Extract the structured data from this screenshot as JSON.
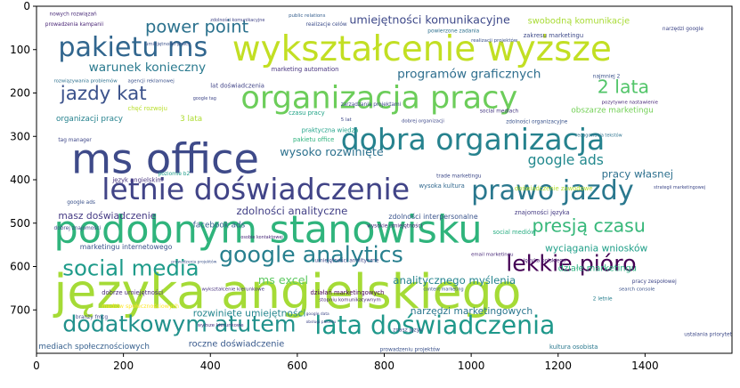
{
  "chart_data": {
    "type": "image",
    "xlim": [
      0,
      1600
    ],
    "ylim": [
      800,
      0
    ],
    "xticks": [
      0,
      200,
      400,
      600,
      800,
      1000,
      1200,
      1400
    ],
    "yticks": [
      0,
      100,
      200,
      300,
      400,
      500,
      600,
      700
    ],
    "xtick_labels": [
      "0",
      "200",
      "400",
      "600",
      "800",
      "1000",
      "1200",
      "1400"
    ],
    "ytick_labels": [
      "0",
      "100",
      "200",
      "300",
      "400",
      "500",
      "600",
      "700"
    ],
    "background": "#ffffff",
    "words": [
      {
        "text": "języka angielskiego",
        "x": 40,
        "y": 695,
        "size": 110,
        "color": "#a5db36"
      },
      {
        "text": "podobnym stanowisku",
        "x": 40,
        "y": 545,
        "size": 88,
        "color": "#2fb47c"
      },
      {
        "text": "wykształcenie wyższe",
        "x": 450,
        "y": 125,
        "size": 80,
        "color": "#c2df23"
      },
      {
        "text": "ms office",
        "x": 80,
        "y": 385,
        "size": 95,
        "color": "#3e4a89"
      },
      {
        "text": "organizacja pracy",
        "x": 470,
        "y": 235,
        "size": 72,
        "color": "#6ccd5a"
      },
      {
        "text": "dobra organizacja",
        "x": 700,
        "y": 330,
        "size": 68,
        "color": "#26828e"
      },
      {
        "text": "letnie doświadczenie",
        "x": 150,
        "y": 445,
        "size": 68,
        "color": "#414487"
      },
      {
        "text": "pakietu ms",
        "x": 50,
        "y": 115,
        "size": 62,
        "color": "#31668e"
      },
      {
        "text": "prawo jazdy",
        "x": 1000,
        "y": 445,
        "size": 62,
        "color": "#2a788e"
      },
      {
        "text": "lata doświadczenia",
        "x": 640,
        "y": 755,
        "size": 58,
        "color": "#1f988b"
      },
      {
        "text": "dodatkowym atutem",
        "x": 60,
        "y": 750,
        "size": 52,
        "color": "#21918c"
      },
      {
        "text": "google analytics",
        "x": 420,
        "y": 590,
        "size": 52,
        "color": "#277f8e"
      },
      {
        "text": "social media",
        "x": 60,
        "y": 620,
        "size": 50,
        "color": "#1e9b8a"
      },
      {
        "text": "lekkie pióro",
        "x": 1080,
        "y": 610,
        "size": 52,
        "color": "#440154"
      },
      {
        "text": "jazdy kat",
        "x": 55,
        "y": 215,
        "size": 44,
        "color": "#3b528b"
      },
      {
        "text": "power point",
        "x": 250,
        "y": 60,
        "size": 40,
        "color": "#2c728e"
      },
      {
        "text": "presją czasu",
        "x": 1140,
        "y": 520,
        "size": 42,
        "color": "#35b779"
      },
      {
        "text": "2 lata",
        "x": 1290,
        "y": 200,
        "size": 42,
        "color": "#52c569"
      },
      {
        "text": "umiejętności komunikacyjne",
        "x": 720,
        "y": 40,
        "size": 26,
        "color": "#3e4989"
      },
      {
        "text": "warunek konieczny",
        "x": 120,
        "y": 150,
        "size": 28,
        "color": "#29798e"
      },
      {
        "text": "programów graficznych",
        "x": 830,
        "y": 165,
        "size": 28,
        "color": "#2e6e8e"
      },
      {
        "text": "google ads",
        "x": 1130,
        "y": 365,
        "size": 32,
        "color": "#23898e"
      },
      {
        "text": "wysoko rozwinięte",
        "x": 560,
        "y": 345,
        "size": 26,
        "color": "#2c718e"
      },
      {
        "text": "zdolności analityczne",
        "x": 460,
        "y": 480,
        "size": 24,
        "color": "#424086"
      },
      {
        "text": "masz doświadczenie",
        "x": 50,
        "y": 490,
        "size": 22,
        "color": "#443983"
      },
      {
        "text": "pracy własnej",
        "x": 1300,
        "y": 395,
        "size": 24,
        "color": "#2d708e"
      },
      {
        "text": "analitycznego myślenia",
        "x": 820,
        "y": 640,
        "size": 24,
        "color": "#25848e"
      },
      {
        "text": "wyciągania wniosków",
        "x": 1170,
        "y": 565,
        "size": 22,
        "color": "#1f9f88"
      },
      {
        "text": "rozwinięte umiejętności",
        "x": 360,
        "y": 715,
        "size": 22,
        "color": "#24868e"
      },
      {
        "text": "narzędzi marketingowych",
        "x": 860,
        "y": 710,
        "size": 22,
        "color": "#2a768e"
      },
      {
        "text": "ms excel",
        "x": 510,
        "y": 640,
        "size": 26,
        "color": "#5ec962"
      },
      {
        "text": "działe marketingu",
        "x": 1200,
        "y": 610,
        "size": 20,
        "color": "#2ab07f"
      },
      {
        "text": "swobodną komunikacje",
        "x": 1130,
        "y": 40,
        "size": 20,
        "color": "#a8db34"
      },
      {
        "text": "roczne doświadczenie",
        "x": 350,
        "y": 785,
        "size": 20,
        "color": "#38598c"
      },
      {
        "text": "mediach społecznościowych",
        "x": 5,
        "y": 790,
        "size": 18,
        "color": "#355f8d"
      },
      {
        "text": "organizacji pracy",
        "x": 45,
        "y": 265,
        "size": 18,
        "color": "#26828e"
      },
      {
        "text": "facebook ads",
        "x": 360,
        "y": 510,
        "size": 18,
        "color": "#34618d"
      },
      {
        "text": "3 lata",
        "x": 330,
        "y": 265,
        "size": 18,
        "color": "#addc30"
      },
      {
        "text": "obszarze marketingu",
        "x": 1230,
        "y": 245,
        "size": 18,
        "color": "#73d056"
      },
      {
        "text": "marketingu internetowego",
        "x": 100,
        "y": 560,
        "size": 16,
        "color": "#3b528b"
      },
      {
        "text": "zdolności interpersonalne",
        "x": 810,
        "y": 490,
        "size": 16,
        "color": "#3a548c"
      },
      {
        "text": "działań marketingowych",
        "x": 630,
        "y": 665,
        "size": 14,
        "color": "#440154"
      },
      {
        "text": "kultura osobista",
        "x": 1180,
        "y": 790,
        "size": 14,
        "color": "#2a788e"
      },
      {
        "text": "zakresu marketingu",
        "x": 1120,
        "y": 72,
        "size": 14,
        "color": "#3e4a89"
      },
      {
        "text": "lat doświadczenia",
        "x": 400,
        "y": 188,
        "size": 14,
        "color": "#414487"
      },
      {
        "text": "wysoka kultura",
        "x": 880,
        "y": 418,
        "size": 14,
        "color": "#31688e"
      },
      {
        "text": "znajomości języka",
        "x": 1100,
        "y": 480,
        "size": 14,
        "color": "#443a83"
      },
      {
        "text": "doświadczenie zawodowe",
        "x": 1100,
        "y": 425,
        "size": 14,
        "color": "#b5de2b"
      },
      {
        "text": "język angielskim",
        "x": 175,
        "y": 405,
        "size": 14,
        "color": "#46327e"
      },
      {
        "text": "dobrze umiejętności",
        "x": 150,
        "y": 665,
        "size": 14,
        "color": "#482878"
      },
      {
        "text": "mediów społecznościowych",
        "x": 150,
        "y": 695,
        "size": 13,
        "color": "#fde725"
      },
      {
        "text": "marketing automation",
        "x": 540,
        "y": 150,
        "size": 14,
        "color": "#46337e"
      },
      {
        "text": "praktyczna wiedza",
        "x": 610,
        "y": 290,
        "size": 14,
        "color": "#1fa188"
      },
      {
        "text": "pakietu office",
        "x": 590,
        "y": 312,
        "size": 14,
        "color": "#2db27d"
      },
      {
        "text": "czasu pracy",
        "x": 580,
        "y": 250,
        "size": 14,
        "color": "#20a386"
      },
      {
        "text": "chęć rozwoju",
        "x": 210,
        "y": 240,
        "size": 14,
        "color": "#b8de29"
      },
      {
        "text": "social mediów",
        "x": 1050,
        "y": 525,
        "size": 14,
        "color": "#27ad81"
      },
      {
        "text": "zarządzania projektami",
        "x": 700,
        "y": 230,
        "size": 12,
        "color": "#3e4989"
      },
      {
        "text": "języka polskiego",
        "x": 1120,
        "y": 590,
        "size": 12,
        "color": "#481a6c"
      },
      {
        "text": "social mediach",
        "x": 1020,
        "y": 245,
        "size": 12,
        "color": "#453781"
      },
      {
        "text": "zdolności organizacyjne",
        "x": 1080,
        "y": 270,
        "size": 12,
        "color": "#3a538b"
      },
      {
        "text": "pracy zespołowej",
        "x": 1370,
        "y": 638,
        "size": 12,
        "color": "#3f4788"
      },
      {
        "text": "narzędzi google",
        "x": 1440,
        "y": 55,
        "size": 12,
        "color": "#3f4788"
      },
      {
        "text": "prowadzenia kampanii",
        "x": 20,
        "y": 45,
        "size": 12,
        "color": "#482475"
      },
      {
        "text": "nowych rozwiązań",
        "x": 30,
        "y": 22,
        "size": 12,
        "color": "#4a2c79"
      },
      {
        "text": "public relations",
        "x": 580,
        "y": 25,
        "size": 11,
        "color": "#355e8d"
      },
      {
        "text": "realizacje celów",
        "x": 620,
        "y": 45,
        "size": 12,
        "color": "#3d4d8a"
      },
      {
        "text": "powierzone zadania",
        "x": 900,
        "y": 60,
        "size": 12,
        "color": "#2d708e"
      },
      {
        "text": "umiejętności pracy",
        "x": 250,
        "y": 90,
        "size": 11,
        "color": "#3b528b"
      },
      {
        "text": "trade marketingu",
        "x": 920,
        "y": 395,
        "size": 12,
        "color": "#3e4a89"
      },
      {
        "text": "poziomie b2",
        "x": 280,
        "y": 390,
        "size": 12,
        "color": "#1f9e89"
      },
      {
        "text": "dobrej organizacji",
        "x": 840,
        "y": 268,
        "size": 11,
        "color": "#3e4989"
      },
      {
        "text": "google ads",
        "x": 70,
        "y": 455,
        "size": 12,
        "color": "#3b528b"
      },
      {
        "text": "dobrej znajomości",
        "x": 40,
        "y": 515,
        "size": 12,
        "color": "#3f4788"
      },
      {
        "text": "wysokie umiejętności",
        "x": 760,
        "y": 510,
        "size": 12,
        "color": "#482878"
      },
      {
        "text": "umiejętności analityczne",
        "x": 640,
        "y": 590,
        "size": 12,
        "color": "#3f4889"
      },
      {
        "text": "stopniu komunikatywnym",
        "x": 650,
        "y": 680,
        "size": 11,
        "color": "#482878"
      },
      {
        "text": "wykształcenie kierunkowe",
        "x": 380,
        "y": 655,
        "size": 11,
        "color": "#46307e"
      },
      {
        "text": "search console",
        "x": 1340,
        "y": 655,
        "size": 11,
        "color": "#3b528b"
      },
      {
        "text": "2 letnie",
        "x": 1280,
        "y": 678,
        "size": 12,
        "color": "#277f8e"
      },
      {
        "text": "znasz język",
        "x": 820,
        "y": 750,
        "size": 12,
        "color": "#3e4989"
      },
      {
        "text": "prowadzeniu projektów",
        "x": 790,
        "y": 795,
        "size": 12,
        "color": "#3b528b"
      },
      {
        "text": "wyższe kierunkowe",
        "x": 370,
        "y": 738,
        "size": 11,
        "color": "#46317e"
      },
      {
        "text": "najmniej 2",
        "x": 1280,
        "y": 165,
        "size": 12,
        "color": "#3b528b"
      },
      {
        "text": "pozytywne nastawienie",
        "x": 1300,
        "y": 225,
        "size": 11,
        "color": "#482878"
      },
      {
        "text": "tag manager",
        "x": 50,
        "y": 312,
        "size": 12,
        "color": "#3f4889"
      },
      {
        "text": "branży fmcg",
        "x": 90,
        "y": 720,
        "size": 12,
        "color": "#3e4a89"
      },
      {
        "text": "ustalania priorytetów",
        "x": 1490,
        "y": 760,
        "size": 12,
        "color": "#3e4a89"
      },
      {
        "text": "content marketing",
        "x": 890,
        "y": 655,
        "size": 10,
        "color": "#39558c"
      },
      {
        "text": "realizacji projektów",
        "x": 1000,
        "y": 82,
        "size": 11,
        "color": "#3b528b"
      },
      {
        "text": "email marketingu",
        "x": 1000,
        "y": 575,
        "size": 11,
        "color": "#482878"
      },
      {
        "text": "zdolności komunikacyjne",
        "x": 400,
        "y": 35,
        "size": 10,
        "color": "#414487"
      },
      {
        "text": "redagowania tekstów",
        "x": 1240,
        "y": 300,
        "size": 10,
        "color": "#2c728e"
      },
      {
        "text": "google tag",
        "x": 360,
        "y": 215,
        "size": 10,
        "color": "#3f4788"
      },
      {
        "text": "rozwiązywania problemów",
        "x": 40,
        "y": 175,
        "size": 11,
        "color": "#2d708e"
      },
      {
        "text": "agencji reklamowej",
        "x": 210,
        "y": 175,
        "size": 11,
        "color": "#3b528b"
      },
      {
        "text": "5 lat",
        "x": 700,
        "y": 265,
        "size": 11,
        "color": "#3e4989"
      },
      {
        "text": "osobie kontaktowej",
        "x": 470,
        "y": 535,
        "size": 10,
        "color": "#482878"
      },
      {
        "text": "strategii marketingowej",
        "x": 1420,
        "y": 420,
        "size": 10,
        "color": "#3e4989"
      },
      {
        "text": "prowadzenia projektów",
        "x": 310,
        "y": 592,
        "size": 9,
        "color": "#3b528b"
      },
      {
        "text": "google data",
        "x": 620,
        "y": 712,
        "size": 9,
        "color": "#3e4989"
      },
      {
        "text": "obsługi pakietu",
        "x": 620,
        "y": 730,
        "size": 9,
        "color": "#3f4788"
      }
    ]
  }
}
